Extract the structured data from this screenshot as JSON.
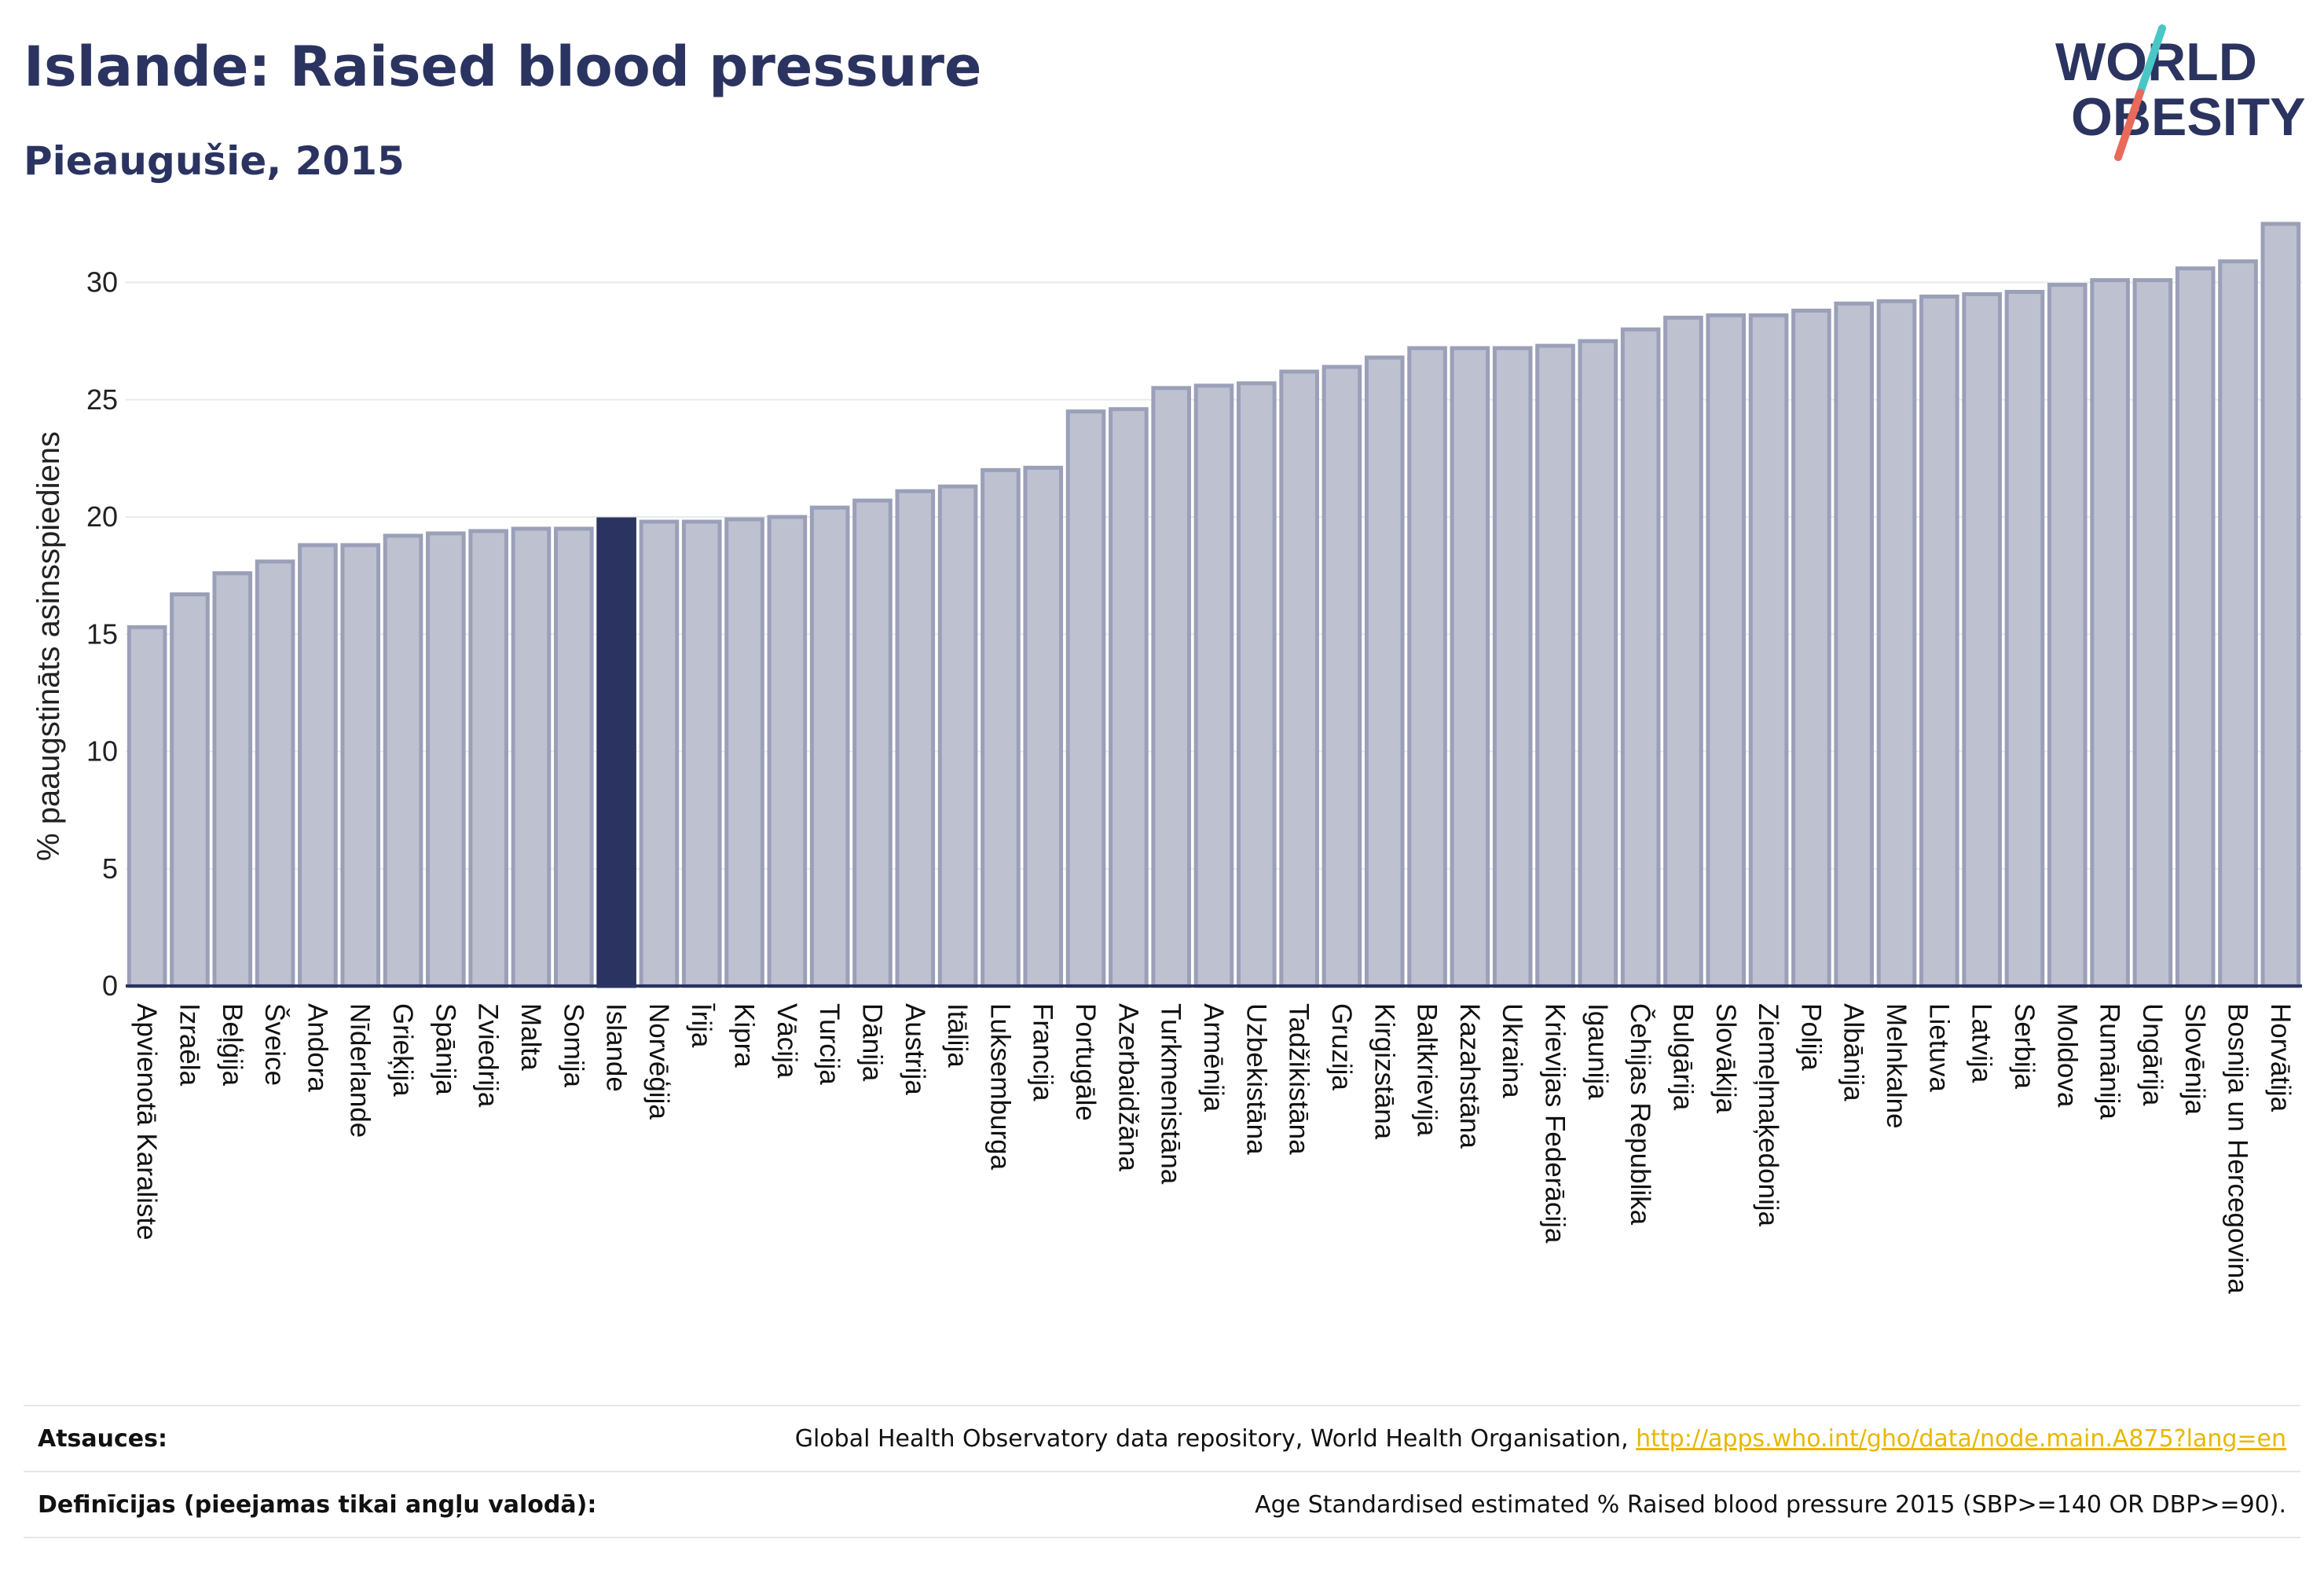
{
  "header": {
    "title": "Islande: Raised blood pressure",
    "subtitle": "Pieaugušie, 2015"
  },
  "logo": {
    "line1": "WORLD",
    "line2": "OBESITY",
    "stroke_colors": [
      "#4ac6c6",
      "#ea6a5a"
    ]
  },
  "colors": {
    "bar": "#bec1d0",
    "bar_border": "#9aa0b8",
    "highlight": "#2b3460",
    "grid": "#e9eaee",
    "axis": "#2b3460"
  },
  "chart_data": {
    "type": "bar",
    "ylabel": "% paaugstināts asinsspiediens",
    "ylim": [
      0,
      33
    ],
    "yticks": [
      0,
      5,
      10,
      15,
      20,
      25,
      30
    ],
    "grid": true,
    "highlight": "Islande",
    "categories": [
      "Apvienotā Karaliste",
      "Izraēla",
      "Beļģija",
      "Šveice",
      "Andora",
      "Nīderlande",
      "Grieķija",
      "Spānija",
      "Zviedrija",
      "Malta",
      "Somija",
      "Islande",
      "Norvēģija",
      "Īrija",
      "Kipra",
      "Vācija",
      "Turcija",
      "Dānija",
      "Austrija",
      "Itālija",
      "Luksemburga",
      "Francija",
      "Portugāle",
      "Azerbaidžāna",
      "Turkmenistāna",
      "Armēnija",
      "Uzbekistāna",
      "Tadžikistāna",
      "Gruzija",
      "Kirgizstāna",
      "Baltkrievija",
      "Kazahstāna",
      "Ukraina",
      "Krievijas Federācija",
      "Igaunija",
      "Čehijas Republika",
      "Bulgārija",
      "Slovākija",
      "Ziemeļmaķedonija",
      "Polija",
      "Albānija",
      "Melnkalne",
      "Lietuva",
      "Latvija",
      "Serbija",
      "Moldova",
      "Rumānija",
      "Ungārija",
      "Slovēnija",
      "Bosnija un Hercegovina",
      "Horvātija"
    ],
    "values": [
      15.3,
      16.7,
      17.6,
      18.1,
      18.8,
      18.8,
      19.2,
      19.3,
      19.4,
      19.5,
      19.5,
      19.9,
      19.8,
      19.8,
      19.9,
      20.0,
      20.4,
      20.7,
      21.1,
      21.3,
      22.0,
      22.1,
      24.5,
      24.6,
      25.5,
      25.6,
      25.7,
      26.2,
      26.4,
      26.8,
      27.2,
      27.2,
      27.2,
      27.3,
      27.5,
      28.0,
      28.5,
      28.6,
      28.6,
      28.8,
      29.1,
      29.2,
      29.4,
      29.5,
      29.6,
      29.9,
      30.1,
      30.1,
      30.6,
      30.9,
      32.5
    ]
  },
  "footer": {
    "sources_label": "Atsauces:",
    "sources_text": "Global Health Observatory data repository, World Health Organisation, ",
    "sources_link": "http://apps.who.int/gho/data/node.main.A875?lang=en",
    "definitions_label": "Definīcijas (pieejamas tikai angļu valodā):",
    "definitions_text": "Age Standardised estimated % Raised blood pressure 2015 (SBP>=140 OR DBP>=90)."
  }
}
